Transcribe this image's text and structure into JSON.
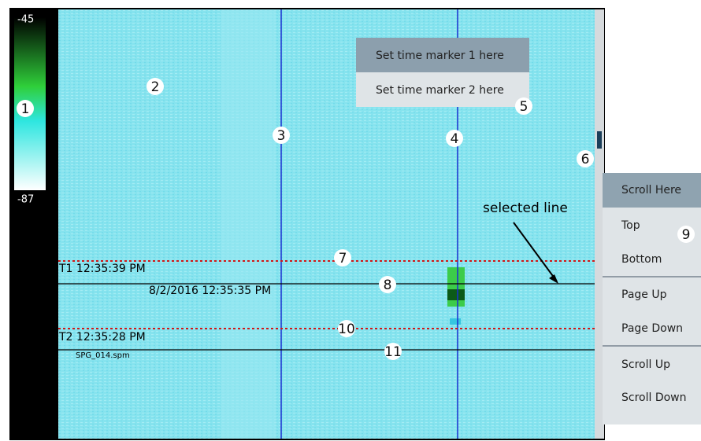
{
  "colorbar": {
    "max": -45,
    "min": -87
  },
  "markers": {
    "t1": "T1 12:35:39 PM",
    "selected": "8/2/2016 12:35:35 PM",
    "t2": "T2 12:35:28 PM",
    "file": "SPG_014.spm"
  },
  "context_menu": {
    "items": [
      "Set time marker 1 here",
      "Set time marker 2 here"
    ]
  },
  "scroll_menu": {
    "items": [
      "Scroll Here",
      "Top",
      "Bottom",
      "Page Up",
      "Page Down",
      "Scroll Up",
      "Scroll Down"
    ]
  },
  "annotation": "selected line",
  "callouts": [
    1,
    2,
    3,
    4,
    5,
    6,
    7,
    8,
    9,
    10,
    11
  ]
}
